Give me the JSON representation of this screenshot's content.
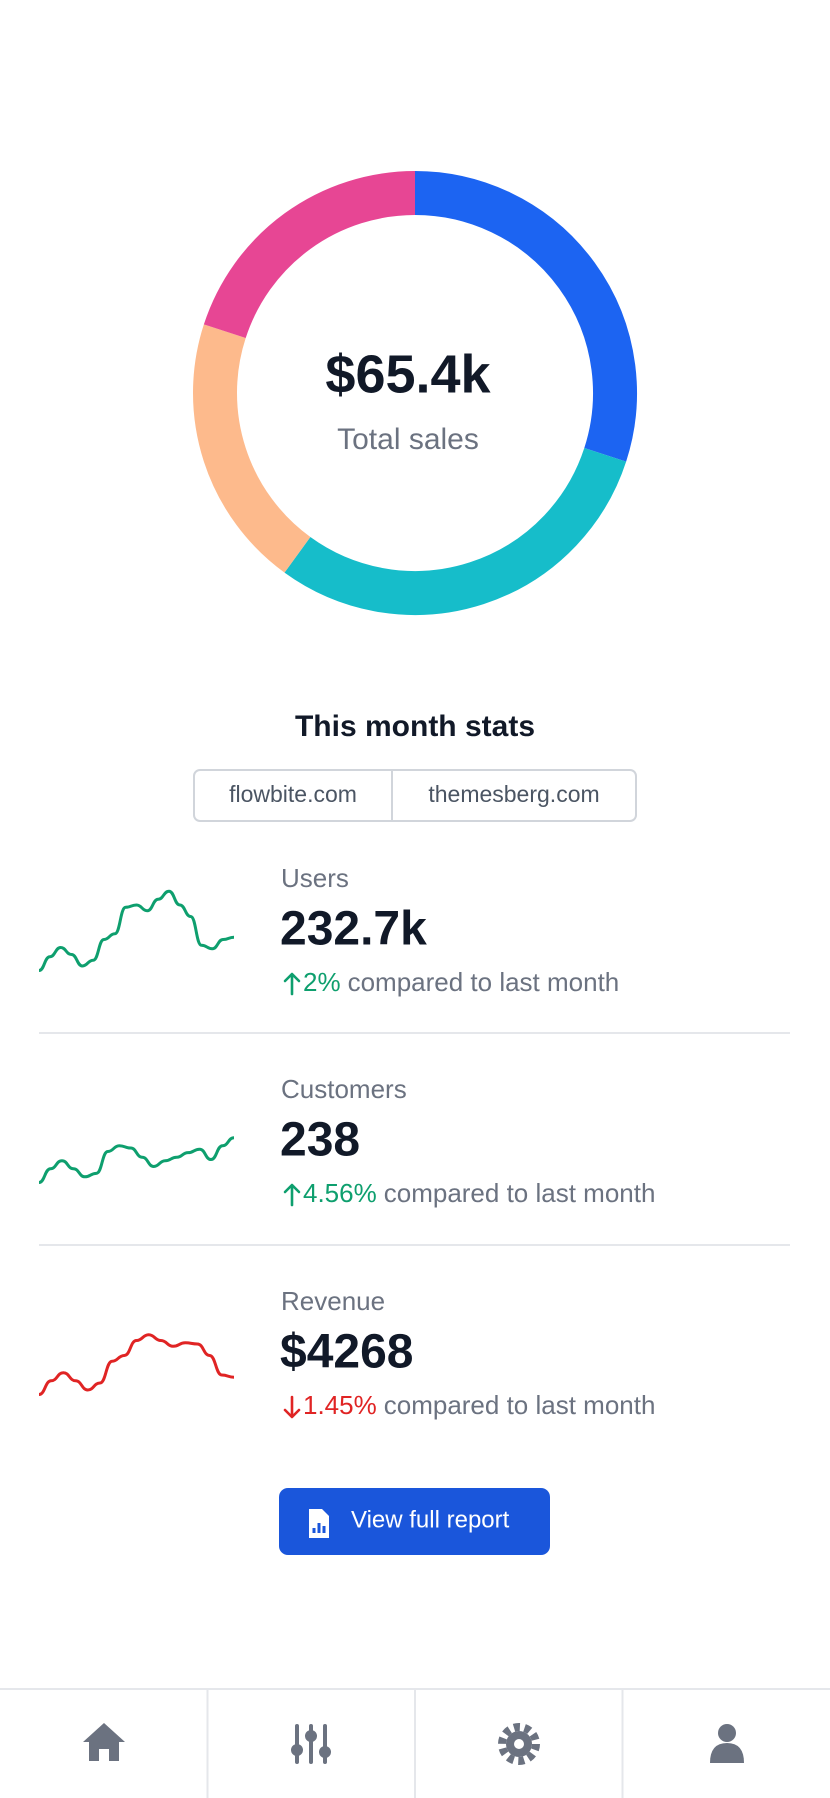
{
  "chart_data": [
    {
      "type": "pie",
      "values": [
        30,
        30,
        20,
        20
      ],
      "colors": [
        "#1c64f2",
        "#16bdca",
        "#fdba8c",
        "#e74694"
      ],
      "center_value": "$65.4k",
      "center_label": "Total sales"
    },
    {
      "type": "line",
      "color": "#0e9f6e",
      "values": [
        3,
        15,
        23,
        17,
        7,
        12,
        30,
        35,
        58,
        60,
        55,
        65,
        72,
        60,
        50,
        25,
        22,
        30,
        32
      ]
    },
    {
      "type": "line",
      "color": "#0e9f6e",
      "values": [
        3,
        15,
        22,
        15,
        8,
        11,
        30,
        35,
        33,
        25,
        17,
        22,
        25,
        29,
        32,
        23,
        35,
        42
      ]
    },
    {
      "type": "line",
      "color": "#e02424",
      "values": [
        3,
        15,
        22,
        15,
        7,
        13,
        32,
        37,
        50,
        55,
        50,
        45,
        48,
        47,
        37,
        20,
        18
      ]
    }
  ],
  "stats": {
    "title": "This month stats",
    "tabs": [
      "flowbite.com",
      "themesberg.com"
    ],
    "items": [
      {
        "label": "Users",
        "value": "232.7k",
        "change": "2%",
        "trend": "up",
        "color": "#0e9f6e",
        "comparison": "compared to last month"
      },
      {
        "label": "Customers",
        "value": "238",
        "change": "4.56%",
        "trend": "up",
        "color": "#0e9f6e",
        "comparison": "compared to last month"
      },
      {
        "label": "Revenue",
        "value": "$4268",
        "change": "1.45%",
        "trend": "down",
        "color": "#e02424",
        "comparison": "compared to last month"
      }
    ]
  },
  "button": "View full report"
}
